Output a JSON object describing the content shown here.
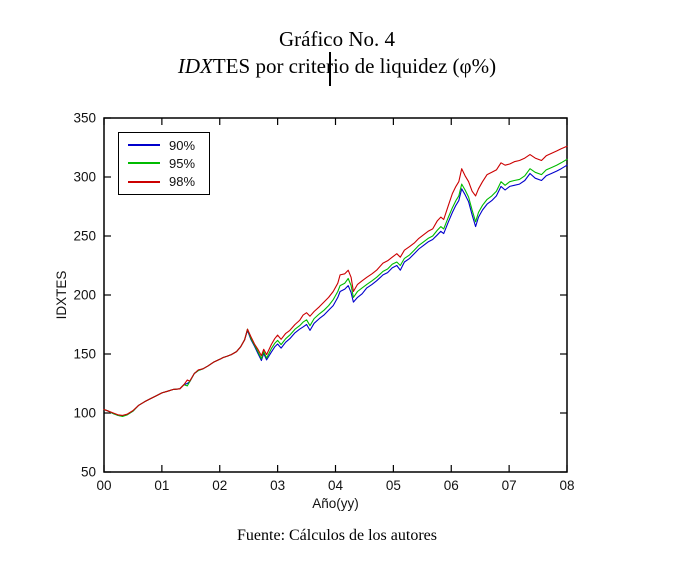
{
  "document": {
    "title_line1": "Gráfico No. 4",
    "title_line2_italic": "IDX",
    "title_line2_rest": "TES por criterio de liquidez (φ%)",
    "source_note": "Fuente: Cálculos de los autores"
  },
  "chart_data": {
    "type": "line",
    "title": "IDXTES por criterio de liquidez (φ%)",
    "xlabel": "Año(yy)",
    "ylabel": "IDXTES",
    "xlim": [
      0,
      8
    ],
    "ylim": [
      50,
      350
    ],
    "grid": false,
    "legend_position": "top-left",
    "xticks": {
      "values": [
        0,
        1,
        2,
        3,
        4,
        5,
        6,
        7,
        8
      ],
      "labels": [
        "00",
        "01",
        "02",
        "03",
        "04",
        "05",
        "06",
        "07",
        "08"
      ]
    },
    "yticks": [
      50,
      100,
      150,
      200,
      250,
      300,
      350
    ],
    "x": [
      0.0,
      0.08,
      0.16,
      0.24,
      0.32,
      0.4,
      0.5,
      0.6,
      0.7,
      0.8,
      0.9,
      1.0,
      1.1,
      1.2,
      1.31,
      1.38,
      1.44,
      1.48,
      1.56,
      1.63,
      1.71,
      1.8,
      1.89,
      2.0,
      2.06,
      2.12,
      2.2,
      2.29,
      2.36,
      2.43,
      2.48,
      2.54,
      2.6,
      2.66,
      2.72,
      2.76,
      2.81,
      2.89,
      2.95,
      3.0,
      3.06,
      3.14,
      3.21,
      3.3,
      3.38,
      3.44,
      3.5,
      3.56,
      3.63,
      3.72,
      3.8,
      3.88,
      3.96,
      4.04,
      4.08,
      4.16,
      4.22,
      4.27,
      4.31,
      4.38,
      4.46,
      4.54,
      4.63,
      4.71,
      4.82,
      4.9,
      4.98,
      5.06,
      5.12,
      5.19,
      5.28,
      5.36,
      5.44,
      5.52,
      5.6,
      5.68,
      5.76,
      5.82,
      5.87,
      5.95,
      6.02,
      6.08,
      6.13,
      6.18,
      6.24,
      6.3,
      6.36,
      6.42,
      6.47,
      6.54,
      6.62,
      6.7,
      6.78,
      6.86,
      6.93,
      7.01,
      7.09,
      7.18,
      7.27,
      7.36,
      7.45,
      7.56,
      7.64,
      7.73,
      7.82,
      7.9,
      8.0
    ],
    "series": [
      {
        "name": "90%",
        "color": "#0000cc",
        "values": [
          103,
          101.5,
          99.5,
          98,
          97.5,
          98.5,
          101.5,
          106.5,
          109.5,
          112,
          114.5,
          117,
          118.5,
          120,
          120.5,
          124,
          125,
          126.5,
          133.5,
          136,
          137.5,
          140,
          143,
          145.5,
          147,
          148,
          149.5,
          152,
          156,
          162,
          170,
          162,
          156.5,
          150.5,
          144.5,
          150.5,
          145,
          151.5,
          156,
          158.5,
          155,
          160,
          163,
          168,
          171,
          173,
          175,
          170,
          176,
          180,
          183,
          187,
          191,
          198,
          203,
          205,
          208,
          202,
          194,
          198,
          201,
          206,
          209,
          212,
          217,
          219,
          223,
          225,
          221,
          228,
          231,
          235,
          239,
          242,
          245,
          247,
          251,
          254,
          252,
          262,
          270,
          276,
          280,
          290,
          285,
          279,
          268,
          258,
          266,
          272,
          277,
          280,
          284,
          292,
          289,
          292,
          293,
          294,
          297,
          303,
          299,
          297,
          301,
          303,
          305,
          307,
          310
        ]
      },
      {
        "name": "95%",
        "color": "#00bb00",
        "values": [
          103,
          101.5,
          99.5,
          98,
          97,
          98.5,
          101.5,
          106.5,
          109.5,
          112,
          114.5,
          117,
          118.5,
          120,
          120.5,
          124,
          123,
          126.5,
          133.5,
          136,
          137.5,
          140,
          143,
          145.5,
          147,
          148,
          149.5,
          152,
          156,
          162,
          171,
          163,
          157.5,
          152,
          146,
          152,
          146.5,
          154.5,
          159,
          161.5,
          158,
          163,
          166,
          171,
          174,
          177,
          179,
          174,
          180,
          184,
          187,
          191,
          196,
          203,
          208,
          210,
          214,
          208,
          198,
          203,
          206,
          209,
          212,
          215,
          220,
          222,
          226,
          228,
          225,
          231,
          234,
          238,
          242,
          245,
          248,
          250,
          255,
          258,
          256,
          266,
          274,
          280,
          284,
          294,
          289,
          283,
          272,
          262,
          270,
          276,
          281,
          284,
          288,
          296,
          293,
          296,
          297,
          298,
          301,
          307,
          304,
          302,
          306,
          308,
          310,
          312,
          315
        ]
      },
      {
        "name": "98%",
        "color": "#cc0000",
        "values": [
          103,
          101.5,
          100,
          98.5,
          98,
          99,
          102,
          106.5,
          109.5,
          112,
          114.5,
          117,
          118.5,
          120,
          120.5,
          124,
          128,
          127,
          133.5,
          136.5,
          137.5,
          140,
          143,
          145.5,
          147,
          148,
          149.5,
          152,
          156,
          162,
          171,
          164.5,
          158.5,
          154,
          148.5,
          154,
          149.5,
          158,
          163,
          166,
          162.5,
          167.5,
          170,
          175,
          178.5,
          183,
          185,
          182,
          186,
          190,
          194,
          198,
          203,
          210,
          217,
          218,
          221,
          215,
          203,
          209,
          212,
          215,
          218,
          221,
          227,
          229,
          232,
          235,
          232,
          238,
          241,
          244,
          248,
          251,
          254,
          256,
          263,
          266,
          264,
          276,
          286,
          292,
          296,
          307,
          301,
          296,
          288,
          284,
          290,
          296,
          302,
          304,
          306,
          312,
          310,
          311,
          313,
          314,
          316,
          319,
          316,
          314,
          318,
          320,
          322,
          324,
          326
        ]
      }
    ]
  }
}
